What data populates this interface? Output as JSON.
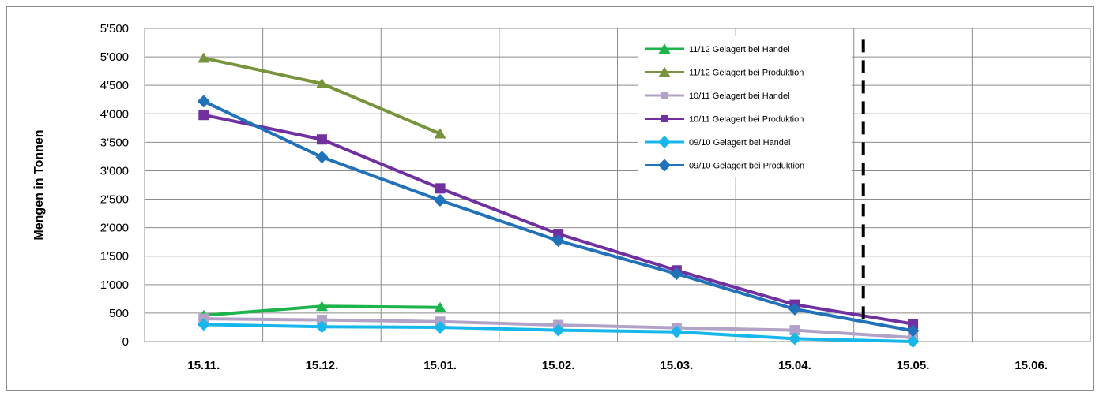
{
  "chart_data": {
    "type": "line",
    "title": "",
    "xlabel": "",
    "ylabel": "Mengen in Tonnen",
    "categories": [
      "15.11.",
      "15.12.",
      "15.01.",
      "15.02.",
      "15.03.",
      "15.04.",
      "15.05.",
      "15.06."
    ],
    "y_ticks": [
      "0",
      "500",
      "1'000",
      "1'500",
      "2'000",
      "2'500",
      "3'000",
      "3'500",
      "4'000",
      "4'500",
      "5'000",
      "5'500"
    ],
    "ylim": [
      0,
      5500
    ],
    "grid": true,
    "legend_position": "top-right",
    "series": [
      {
        "name": "11/12 Gelagert bei Handel",
        "color": "#1db44c",
        "marker": "triangle",
        "values": [
          460,
          620,
          600,
          null,
          null,
          null,
          null,
          null
        ]
      },
      {
        "name": "11/12 Gelagert bei Produktion",
        "color": "#77933c",
        "marker": "triangle",
        "values": [
          4980,
          4530,
          3650,
          null,
          null,
          null,
          null,
          null
        ]
      },
      {
        "name": "10/11 Gelagert bei Handel",
        "color": "#b3a2c7",
        "marker": "square",
        "values": [
          400,
          380,
          350,
          290,
          240,
          200,
          70,
          null
        ]
      },
      {
        "name": "10/11 Gelagert bei Produktion",
        "color": "#7030a0",
        "marker": "square",
        "values": [
          3980,
          3550,
          2690,
          1890,
          1250,
          650,
          310,
          null
        ]
      },
      {
        "name": "09/10 Gelagert bei Handel",
        "color": "#17b7eb",
        "marker": "diamond",
        "values": [
          300,
          260,
          250,
          200,
          170,
          50,
          0,
          null
        ]
      },
      {
        "name": "09/10 Gelagert bei Produktion",
        "color": "#2172b9",
        "marker": "diamond",
        "values": [
          4220,
          3240,
          2480,
          1770,
          1190,
          570,
          190,
          null
        ]
      }
    ],
    "reference_line": {
      "style": "dashed",
      "color": "#000000",
      "x_between": [
        "15.04.",
        "15.05."
      ],
      "y_range": [
        300,
        5300
      ]
    }
  }
}
